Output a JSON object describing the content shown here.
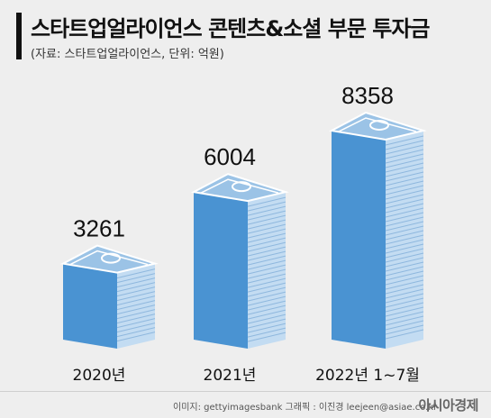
{
  "header": {
    "title": "스타트업얼라이언스 콘텐츠&소셜 부문 투자금",
    "subtitle": "(자료: 스타트업얼라이언스, 단위: 억원)"
  },
  "chart_data": {
    "type": "bar",
    "categories": [
      "2020년",
      "2021년",
      "2022년 1~7월"
    ],
    "values": [
      3261,
      6004,
      8358
    ],
    "value_labels": [
      "3261",
      "6004",
      "8358"
    ],
    "ylim": [
      0,
      8358
    ],
    "grid": false,
    "legend": "none"
  },
  "footer": {
    "credit": "이미지: gettyimagesbank  그래픽 : 이진경 leejeen@asiae.co.kr",
    "brand": "아시아경제"
  },
  "colors": {
    "front": "#4a93d2",
    "side": "#c3dcf2",
    "note": "#9bc3e6",
    "background": "#eeeeee"
  }
}
